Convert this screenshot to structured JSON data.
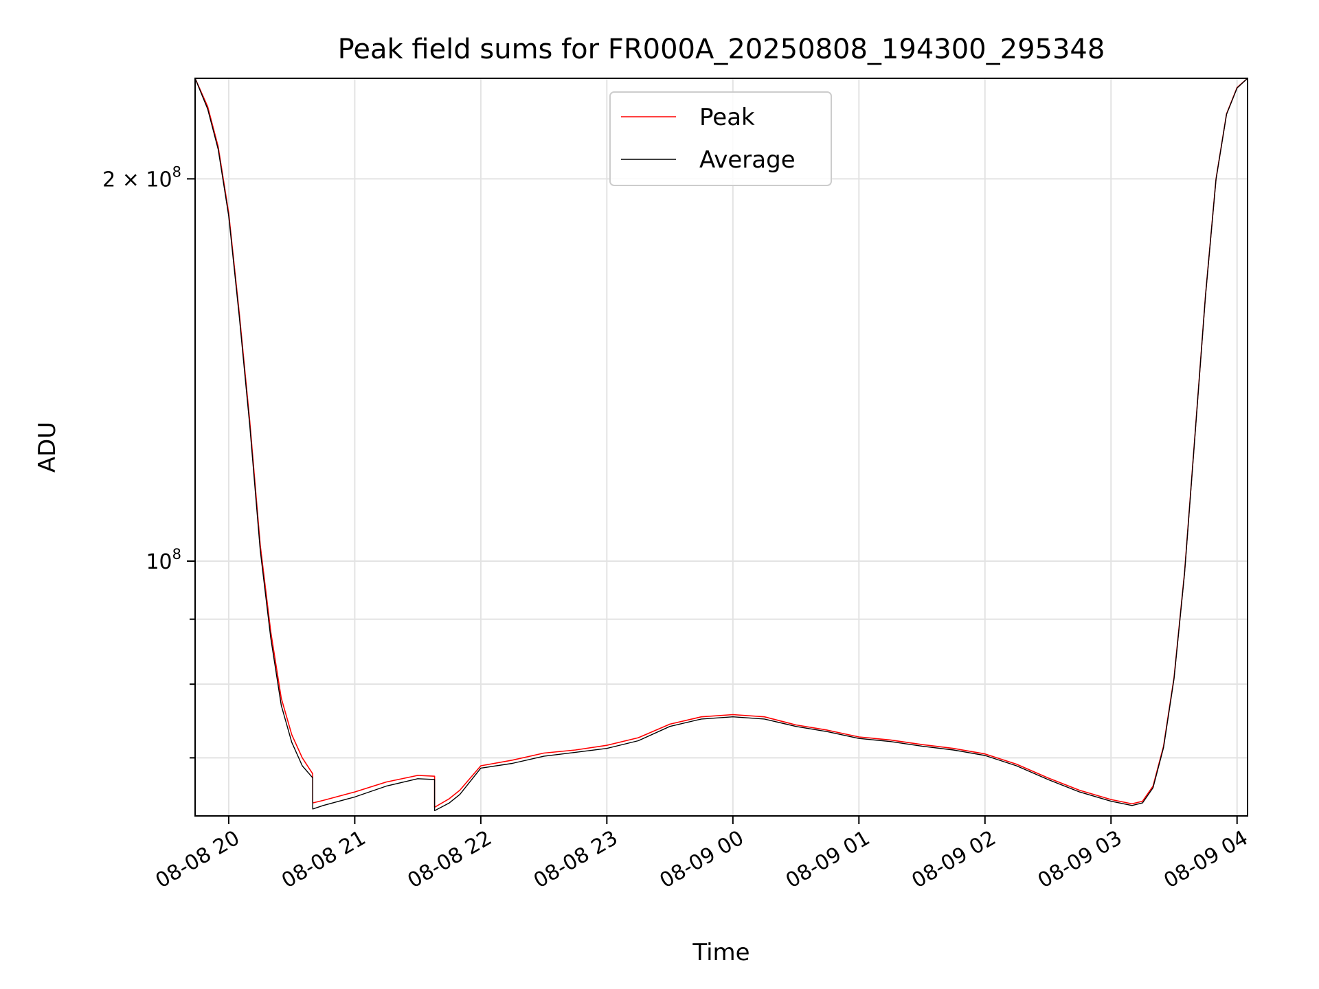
{
  "chart_data": {
    "type": "line",
    "title": "Peak field sums for FR000A_20250808_194300_295348",
    "xlabel": "Time",
    "ylabel": "ADU",
    "y_scale": "log",
    "grid": true,
    "legend_position": "top-center",
    "xlim": [
      "2025-08-08 19:44",
      "2025-08-09 04:05"
    ],
    "ylim": [
      63000000,
      240000000
    ],
    "x_ticks": [
      {
        "value": "2025-08-08 20:00",
        "label": "08-08 20"
      },
      {
        "value": "2025-08-08 21:00",
        "label": "08-08 21"
      },
      {
        "value": "2025-08-08 22:00",
        "label": "08-08 22"
      },
      {
        "value": "2025-08-08 23:00",
        "label": "08-08 23"
      },
      {
        "value": "2025-08-09 00:00",
        "label": "08-09 00"
      },
      {
        "value": "2025-08-09 01:00",
        "label": "08-09 01"
      },
      {
        "value": "2025-08-09 02:00",
        "label": "08-09 02"
      },
      {
        "value": "2025-08-09 03:00",
        "label": "08-09 03"
      },
      {
        "value": "2025-08-09 04:00",
        "label": "08-09 04"
      }
    ],
    "y_major_ticks": [
      {
        "value": 100000000,
        "label_base": "10",
        "label_exp": "8",
        "label_prefix": ""
      },
      {
        "value": 200000000,
        "label_base": "10",
        "label_exp": "8",
        "label_prefix": "2 × "
      }
    ],
    "y_minor_ticks": [
      70000000,
      80000000,
      90000000
    ],
    "series": [
      {
        "name": "Peak",
        "color": "#ff0000",
        "x": [
          "2025-08-08 19:44",
          "2025-08-08 19:50",
          "2025-08-08 19:55",
          "2025-08-08 20:00",
          "2025-08-08 20:05",
          "2025-08-08 20:10",
          "2025-08-08 20:15",
          "2025-08-08 20:20",
          "2025-08-08 20:25",
          "2025-08-08 20:30",
          "2025-08-08 20:35",
          "2025-08-08 20:40",
          "2025-08-08 20:40",
          "2025-08-08 20:45",
          "2025-08-08 21:00",
          "2025-08-08 21:15",
          "2025-08-08 21:30",
          "2025-08-08 21:38",
          "2025-08-08 21:38",
          "2025-08-08 21:45",
          "2025-08-08 21:50",
          "2025-08-08 22:00",
          "2025-08-08 22:15",
          "2025-08-08 22:30",
          "2025-08-08 22:45",
          "2025-08-08 23:00",
          "2025-08-08 23:15",
          "2025-08-08 23:30",
          "2025-08-08 23:45",
          "2025-08-09 00:00",
          "2025-08-09 00:15",
          "2025-08-09 00:30",
          "2025-08-09 00:45",
          "2025-08-09 01:00",
          "2025-08-09 01:15",
          "2025-08-09 01:30",
          "2025-08-09 01:45",
          "2025-08-09 02:00",
          "2025-08-09 02:15",
          "2025-08-09 02:30",
          "2025-08-09 02:45",
          "2025-08-09 03:00",
          "2025-08-09 03:10",
          "2025-08-09 03:15",
          "2025-08-09 03:20",
          "2025-08-09 03:25",
          "2025-08-09 03:30",
          "2025-08-09 03:35",
          "2025-08-09 03:40",
          "2025-08-09 03:45",
          "2025-08-09 03:50",
          "2025-08-09 03:55",
          "2025-08-09 04:00",
          "2025-08-09 04:05"
        ],
        "y": [
          240000000,
          228000000,
          212000000,
          188000000,
          157000000,
          129000000,
          103000000,
          88000000,
          78000000,
          73000000,
          70000000,
          68000000,
          64500000,
          64800000,
          65800000,
          67000000,
          67800000,
          67700000,
          64000000,
          65000000,
          66000000,
          69000000,
          69700000,
          70600000,
          71000000,
          71600000,
          72600000,
          74400000,
          75400000,
          75700000,
          75400000,
          74300000,
          73600000,
          72700000,
          72300000,
          71700000,
          71200000,
          70500000,
          69200000,
          67500000,
          66000000,
          64900000,
          64400000,
          64700000,
          66500000,
          71500000,
          81000000,
          98000000,
          126000000,
          162000000,
          200000000,
          225000000,
          236000000,
          240000000
        ]
      },
      {
        "name": "Average",
        "color": "#000000",
        "x": [
          "2025-08-08 19:44",
          "2025-08-08 19:50",
          "2025-08-08 19:55",
          "2025-08-08 20:00",
          "2025-08-08 20:05",
          "2025-08-08 20:10",
          "2025-08-08 20:15",
          "2025-08-08 20:20",
          "2025-08-08 20:25",
          "2025-08-08 20:30",
          "2025-08-08 20:35",
          "2025-08-08 20:40",
          "2025-08-08 20:40",
          "2025-08-08 20:45",
          "2025-08-08 21:00",
          "2025-08-08 21:15",
          "2025-08-08 21:30",
          "2025-08-08 21:38",
          "2025-08-08 21:38",
          "2025-08-08 21:45",
          "2025-08-08 21:50",
          "2025-08-08 22:00",
          "2025-08-08 22:15",
          "2025-08-08 22:30",
          "2025-08-08 22:45",
          "2025-08-08 23:00",
          "2025-08-08 23:15",
          "2025-08-08 23:30",
          "2025-08-08 23:45",
          "2025-08-09 00:00",
          "2025-08-09 00:15",
          "2025-08-09 00:30",
          "2025-08-09 00:45",
          "2025-08-09 01:00",
          "2025-08-09 01:15",
          "2025-08-09 01:30",
          "2025-08-09 01:45",
          "2025-08-09 02:00",
          "2025-08-09 02:15",
          "2025-08-09 02:30",
          "2025-08-09 02:45",
          "2025-08-09 03:00",
          "2025-08-09 03:10",
          "2025-08-09 03:15",
          "2025-08-09 03:20",
          "2025-08-09 03:25",
          "2025-08-09 03:30",
          "2025-08-09 03:35",
          "2025-08-09 03:40",
          "2025-08-09 03:45",
          "2025-08-09 03:50",
          "2025-08-09 03:55",
          "2025-08-09 04:00",
          "2025-08-09 04:05"
        ],
        "y": [
          240000000,
          227000000,
          211000000,
          187000000,
          156000000,
          128000000,
          102000000,
          87000000,
          77000000,
          72000000,
          69000000,
          67500000,
          63800000,
          64200000,
          65200000,
          66500000,
          67400000,
          67300000,
          63600000,
          64500000,
          65500000,
          68700000,
          69300000,
          70200000,
          70700000,
          71200000,
          72200000,
          74100000,
          75100000,
          75400000,
          75100000,
          74100000,
          73400000,
          72500000,
          72100000,
          71500000,
          71000000,
          70300000,
          69000000,
          67300000,
          65800000,
          64700000,
          64200000,
          64500000,
          66300000,
          71300000,
          80800000,
          97800000,
          125800000,
          161800000,
          199800000,
          224800000,
          235800000,
          240000000
        ]
      }
    ]
  }
}
